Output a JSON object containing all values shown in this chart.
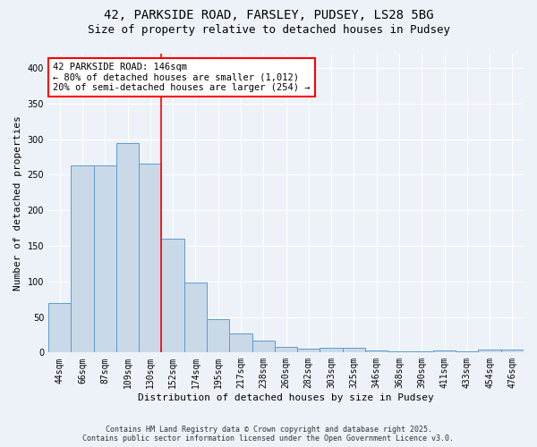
{
  "title1": "42, PARKSIDE ROAD, FARSLEY, PUDSEY, LS28 5BG",
  "title2": "Size of property relative to detached houses in Pudsey",
  "xlabel": "Distribution of detached houses by size in Pudsey",
  "ylabel": "Number of detached properties",
  "bar_labels": [
    "44sqm",
    "66sqm",
    "87sqm",
    "109sqm",
    "130sqm",
    "152sqm",
    "174sqm",
    "195sqm",
    "217sqm",
    "238sqm",
    "260sqm",
    "282sqm",
    "303sqm",
    "325sqm",
    "346sqm",
    "368sqm",
    "390sqm",
    "411sqm",
    "433sqm",
    "454sqm",
    "476sqm"
  ],
  "bar_values": [
    70,
    263,
    263,
    295,
    265,
    160,
    98,
    47,
    27,
    17,
    8,
    5,
    7,
    7,
    3,
    2,
    2,
    3,
    2,
    4,
    4
  ],
  "bar_color": "#c9d9e8",
  "bar_edge_color": "#5b9bd5",
  "vline_x": 5.0,
  "vline_color": "red",
  "annotation_text": "42 PARKSIDE ROAD: 146sqm\n← 80% of detached houses are smaller (1,012)\n20% of semi-detached houses are larger (254) →",
  "annotation_box_color": "white",
  "annotation_box_edge": "red",
  "footer1": "Contains HM Land Registry data © Crown copyright and database right 2025.",
  "footer2": "Contains public sector information licensed under the Open Government Licence v3.0.",
  "bg_color": "#edf2f8",
  "plot_bg_color": "#edf2f8",
  "grid_color": "white",
  "ylim": [
    0,
    420
  ],
  "yticks": [
    0,
    50,
    100,
    150,
    200,
    250,
    300,
    350,
    400
  ],
  "title_fontsize": 10,
  "subtitle_fontsize": 9,
  "footer_fontsize": 6,
  "axis_label_fontsize": 8,
  "tick_fontsize": 7
}
